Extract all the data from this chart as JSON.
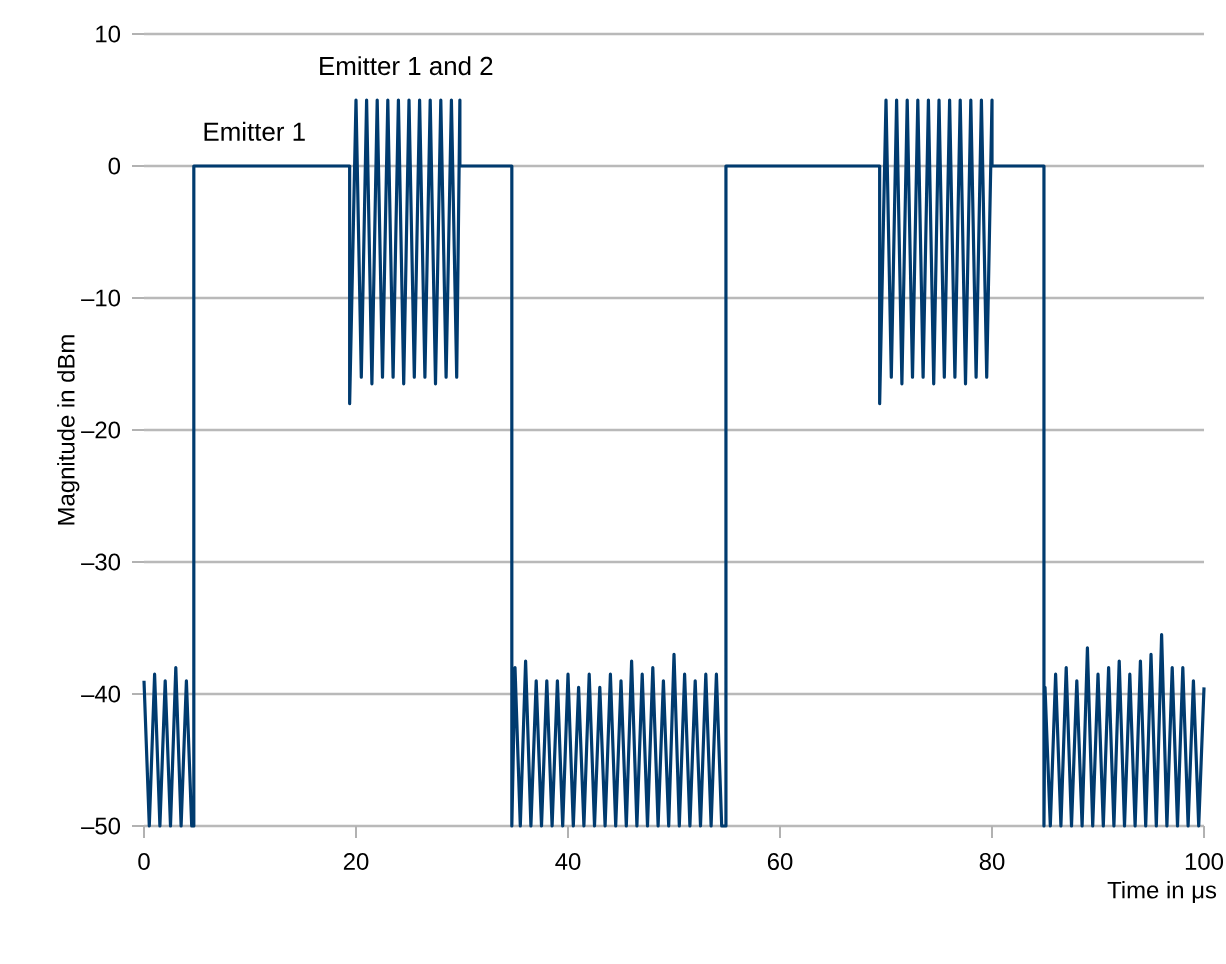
{
  "chart_data": {
    "type": "line",
    "xlabel": "Time in μs",
    "ylabel": "Magnitude in dBm",
    "xlim": [
      0,
      100
    ],
    "ylim": [
      -50,
      10
    ],
    "xticks": [
      0,
      20,
      40,
      60,
      80,
      100
    ],
    "yticks": [
      {
        "value": -50,
        "label": "–50"
      },
      {
        "value": -40,
        "label": "–40"
      },
      {
        "value": -30,
        "label": "–30"
      },
      {
        "value": -20,
        "label": "–20"
      },
      {
        "value": -10,
        "label": "–10"
      },
      0,
      10
    ],
    "grid": "y",
    "line_style": "solid",
    "marker": "none",
    "annotations": [
      "Emitter 1",
      "Emitter 1 and 2"
    ],
    "series": [
      {
        "color": "#003b6f",
        "x": [
          0,
          0.5,
          1,
          1.5,
          2,
          2.5,
          3,
          3.5,
          4,
          4.5,
          4.7,
          4.7,
          19.4,
          19.4,
          20,
          20.5,
          21,
          21.5,
          22,
          22.5,
          23,
          23.5,
          24,
          24.5,
          25,
          25.5,
          26,
          26.5,
          27,
          27.5,
          28,
          28.5,
          29,
          29.5,
          29.8,
          29.8,
          34.7,
          34.7,
          35,
          35.5,
          36,
          36.5,
          37,
          37.5,
          38,
          38.5,
          39,
          39.5,
          40,
          40.5,
          41,
          41.5,
          42,
          42.5,
          43,
          43.5,
          44,
          44.5,
          45,
          45.5,
          46,
          46.5,
          47,
          47.5,
          48,
          48.5,
          49,
          49.5,
          50,
          50.5,
          51,
          51.5,
          52,
          52.5,
          53,
          53.5,
          54,
          54.5,
          54.9,
          54.9,
          69.4,
          69.4,
          70,
          70.5,
          71,
          71.5,
          72,
          72.5,
          73,
          73.5,
          74,
          74.5,
          75,
          75.5,
          76,
          76.5,
          77,
          77.5,
          78,
          78.5,
          79,
          79.5,
          80,
          80,
          84.9,
          84.9,
          85,
          85.5,
          86,
          86.5,
          87,
          87.5,
          88,
          88.5,
          89,
          89.5,
          90,
          90.5,
          91,
          91.5,
          92,
          92.5,
          93,
          93.5,
          94,
          94.5,
          95,
          95.5,
          96,
          96.5,
          97,
          97.5,
          98,
          98.5,
          99,
          99.5,
          100
        ],
        "values": [
          -39,
          -50,
          -38.5,
          -50,
          -39,
          -50,
          -38,
          -50,
          -39,
          -50,
          -50,
          0,
          0,
          -18,
          5,
          -16,
          5,
          -16.5,
          5,
          -16,
          5,
          -16,
          5,
          -16.5,
          5,
          -16,
          5,
          -16,
          5,
          -16.5,
          5,
          -16,
          5,
          -16,
          5,
          0,
          0,
          -50,
          -38,
          -50,
          -37.5,
          -50,
          -39,
          -50,
          -39,
          -50,
          -39,
          -50,
          -38.5,
          -50,
          -39.5,
          -50,
          -38.5,
          -50,
          -39.5,
          -50,
          -38.5,
          -50,
          -39,
          -50,
          -37.5,
          -50,
          -38.5,
          -50,
          -38,
          -50,
          -39,
          -50,
          -37,
          -50,
          -38.5,
          -50,
          -39,
          -50,
          -38.5,
          -50,
          -38.5,
          -50,
          -50,
          0,
          0,
          -18,
          5,
          -16,
          5,
          -16.5,
          5,
          -16,
          5,
          -16,
          5,
          -16.5,
          5,
          -16,
          5,
          -16,
          5,
          -16.5,
          5,
          -16,
          5,
          -16,
          5,
          0,
          0,
          -50,
          -39.5,
          -50,
          -38.5,
          -50,
          -38,
          -50,
          -39,
          -50,
          -36.5,
          -50,
          -38.5,
          -50,
          -38,
          -50,
          -37.5,
          -50,
          -38.5,
          -50,
          -37.5,
          -50,
          -37,
          -50,
          -35.5,
          -50,
          -38,
          -50,
          -38,
          -50,
          -39,
          -50,
          -39.5
        ]
      }
    ]
  }
}
